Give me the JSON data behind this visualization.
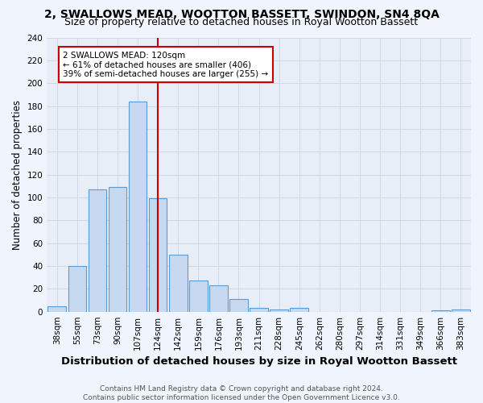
{
  "title": "2, SWALLOWS MEAD, WOOTTON BASSETT, SWINDON, SN4 8QA",
  "subtitle": "Size of property relative to detached houses in Royal Wootton Bassett",
  "xlabel": "Distribution of detached houses by size in Royal Wootton Bassett",
  "ylabel": "Number of detached properties",
  "footer_line1": "Contains HM Land Registry data © Crown copyright and database right 2024.",
  "footer_line2": "Contains public sector information licensed under the Open Government Licence v3.0.",
  "categories": [
    "38sqm",
    "55sqm",
    "73sqm",
    "90sqm",
    "107sqm",
    "124sqm",
    "142sqm",
    "159sqm",
    "176sqm",
    "193sqm",
    "211sqm",
    "228sqm",
    "245sqm",
    "262sqm",
    "280sqm",
    "297sqm",
    "314sqm",
    "331sqm",
    "349sqm",
    "366sqm",
    "383sqm"
  ],
  "values": [
    5,
    40,
    107,
    109,
    184,
    99,
    50,
    27,
    23,
    11,
    3,
    2,
    3,
    0,
    0,
    0,
    0,
    0,
    0,
    1,
    2
  ],
  "bar_color": "#c6d9f0",
  "bar_edge_color": "#5b9bd5",
  "vline_x_index": 5,
  "vline_color": "#cc0000",
  "annotation_line1": "2 SWALLOWS MEAD: 120sqm",
  "annotation_line2": "← 61% of detached houses are smaller (406)",
  "annotation_line3": "39% of semi-detached houses are larger (255) →",
  "annotation_box_color": "#ffffff",
  "annotation_box_edge_color": "#cc0000",
  "ylim": [
    0,
    240
  ],
  "yticks": [
    0,
    20,
    40,
    60,
    80,
    100,
    120,
    140,
    160,
    180,
    200,
    220,
    240
  ],
  "grid_color": "#d0d8e8",
  "background_color": "#e8eef8",
  "fig_background_color": "#f0f4fc",
  "title_fontsize": 10,
  "subtitle_fontsize": 9,
  "xlabel_fontsize": 9.5,
  "ylabel_fontsize": 8.5,
  "tick_fontsize": 7.5,
  "annotation_fontsize": 7.5,
  "footer_fontsize": 6.5
}
